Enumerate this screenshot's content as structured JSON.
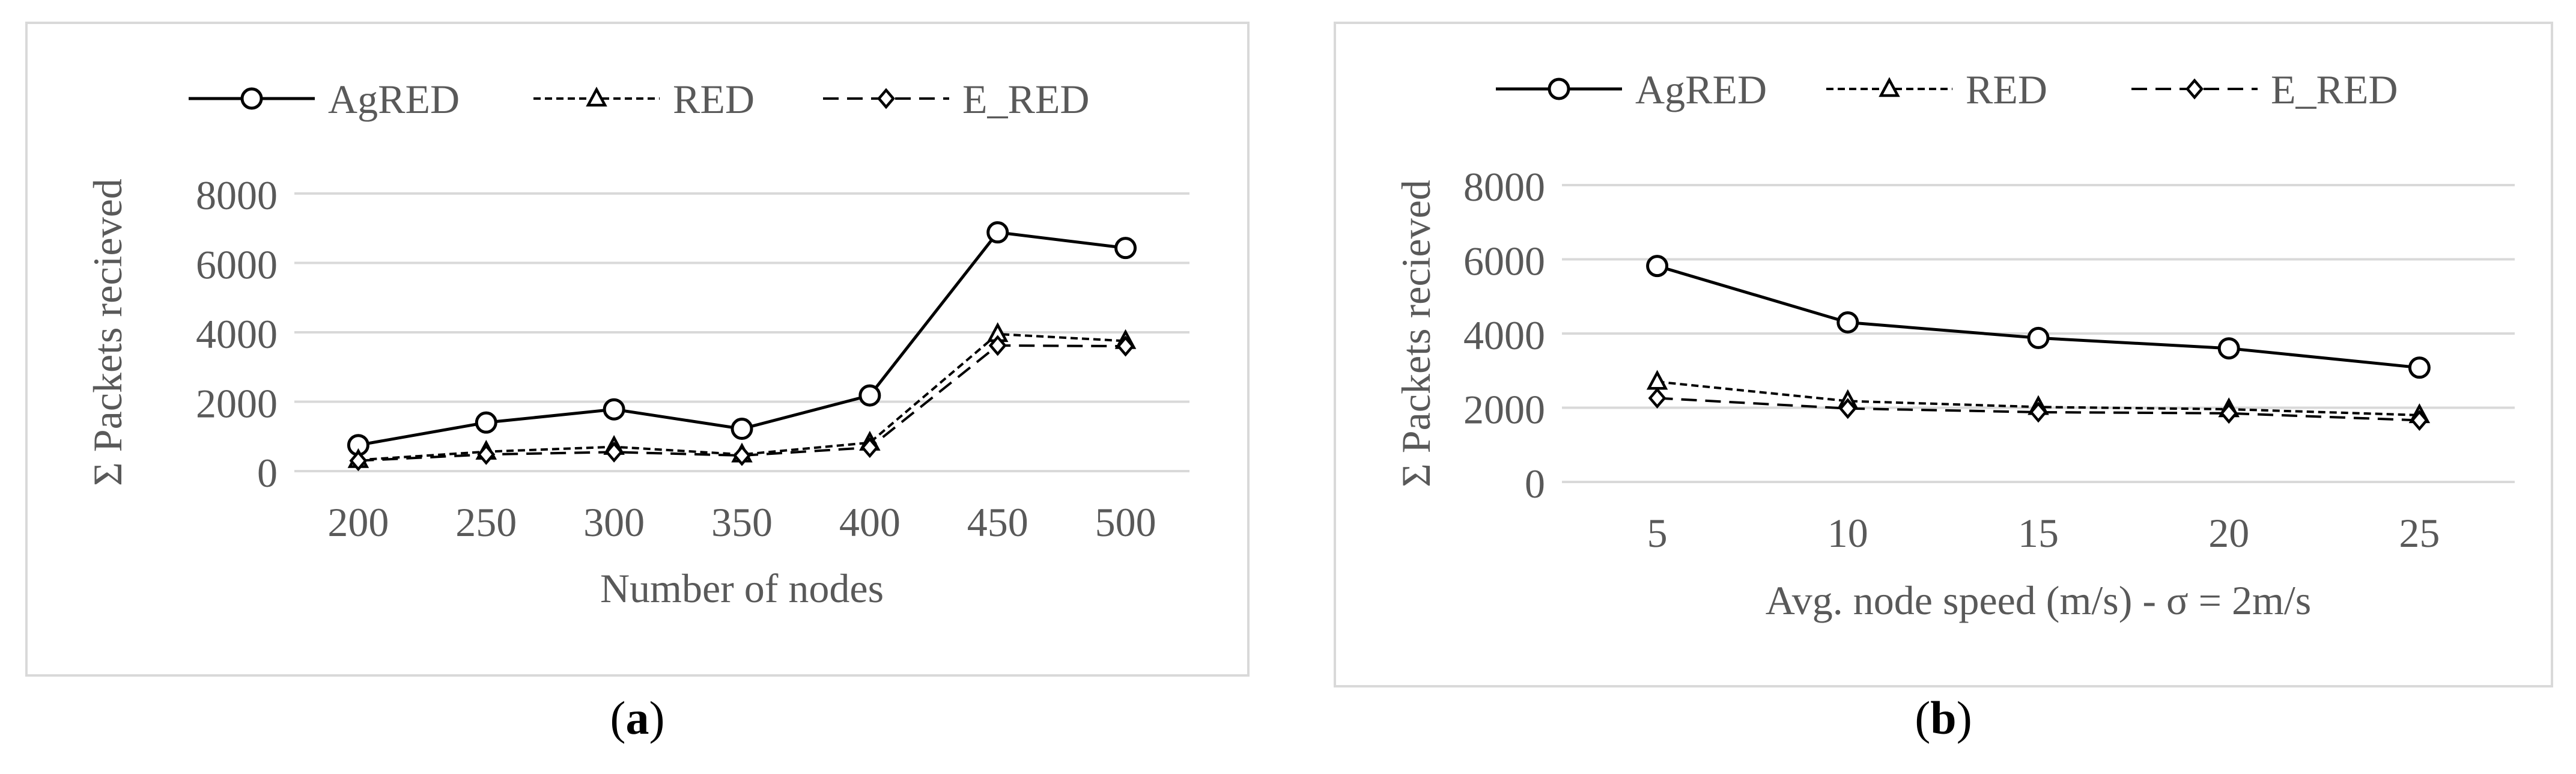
{
  "panels": [
    {
      "caption": "a",
      "chart_data": {
        "type": "line",
        "title": "",
        "xlabel": "Number of nodes",
        "ylabel": "Σ Packets recieved",
        "categories": [
          "200",
          "250",
          "300",
          "350",
          "400",
          "450",
          "500"
        ],
        "ylim": [
          0,
          8000
        ],
        "yticks": [
          "0",
          "2000",
          "4000",
          "6000",
          "8000"
        ],
        "grid": "horizontal",
        "legend_position": "top",
        "series": [
          {
            "name": "AgRED",
            "marker": "circle",
            "dash": "solid",
            "values": [
              750,
              1400,
              1780,
              1220,
              2180,
              6880,
              6430
            ]
          },
          {
            "name": "RED",
            "marker": "triangle",
            "dash": "dotted",
            "values": [
              320,
              560,
              700,
              480,
              820,
              3950,
              3750
            ]
          },
          {
            "name": "E_RED",
            "marker": "diamond",
            "dash": "dashed",
            "values": [
              300,
              480,
              550,
              450,
              680,
              3620,
              3600
            ]
          }
        ]
      }
    },
    {
      "caption": "b",
      "chart_data": {
        "type": "line",
        "title": "",
        "xlabel": "Avg. node speed (m/s) - σ = 2m/s",
        "ylabel": "Σ Packets recieved",
        "categories": [
          "5",
          "10",
          "15",
          "20",
          "25"
        ],
        "ylim": [
          0,
          8000
        ],
        "yticks": [
          "0",
          "2000",
          "4000",
          "6000",
          "8000"
        ],
        "grid": "horizontal",
        "legend_position": "top",
        "series": [
          {
            "name": "AgRED",
            "marker": "circle",
            "dash": "solid",
            "values": [
              5820,
              4300,
              3880,
              3600,
              3080
            ]
          },
          {
            "name": "RED",
            "marker": "triangle",
            "dash": "dotted",
            "values": [
              2700,
              2180,
              2020,
              1960,
              1800
            ]
          },
          {
            "name": "E_RED",
            "marker": "diamond",
            "dash": "dashed",
            "values": [
              2260,
              1980,
              1880,
              1850,
              1660
            ]
          }
        ]
      }
    }
  ]
}
